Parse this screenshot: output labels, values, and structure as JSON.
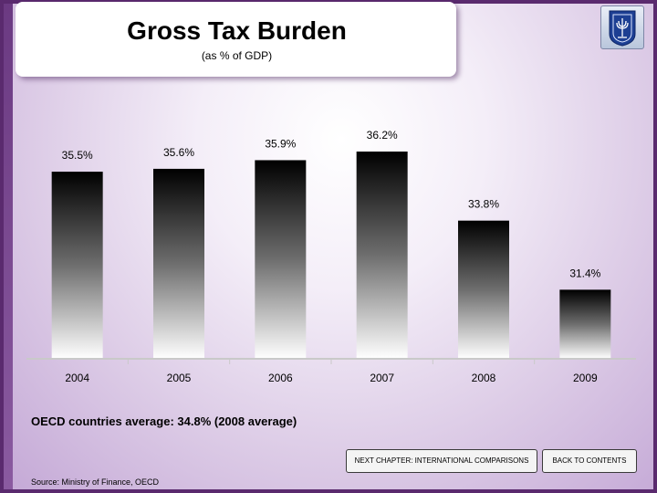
{
  "header": {
    "title": "Gross Tax Burden",
    "subtitle": "(as % of GDP)",
    "emblem_icon": "state-emblem-icon"
  },
  "chart_data": {
    "type": "bar",
    "categories": [
      "2004",
      "2005",
      "2006",
      "2007",
      "2008",
      "2009"
    ],
    "values": [
      35.5,
      35.6,
      35.9,
      36.2,
      33.8,
      31.4
    ],
    "data_labels": [
      "35.5%",
      "35.6%",
      "35.9%",
      "36.2%",
      "33.8%",
      "31.4%"
    ],
    "title": "Gross Tax Burden",
    "subtitle": "(as % of GDP)",
    "ylim": [
      29,
      37
    ],
    "grid": false,
    "bar_style": "gradient black to white"
  },
  "oecd_note": "OECD countries average: 34.8% (2008 average)",
  "buttons": {
    "next_chapter": "NEXT CHAPTER: INTERNATIONAL COMPARISONS",
    "back_to_contents": "BACK TO CONTENTS"
  },
  "source": "Source: Ministry of Finance, OECD",
  "colors": {
    "frame": "#5a2a6e",
    "bar_top": "#000000",
    "bar_bottom": "#ffffff"
  }
}
